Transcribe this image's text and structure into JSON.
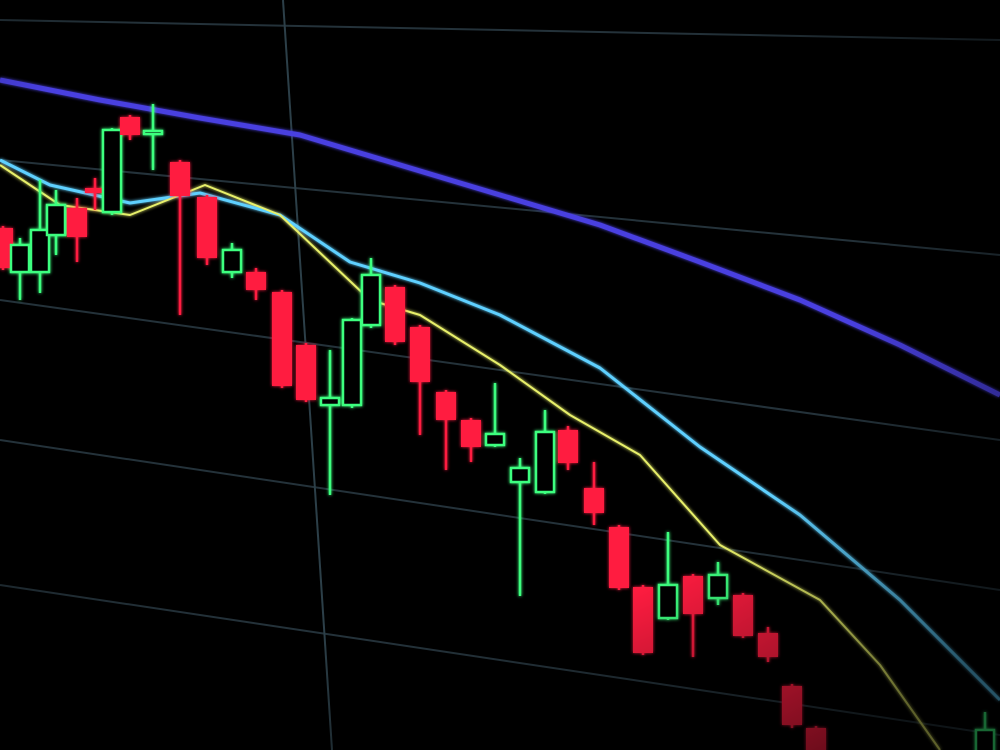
{
  "scene": {
    "subject": "candlestick-price-chart-on-screen",
    "colors": {
      "background": "#000000",
      "bearish_candle": "#ff1f3f",
      "bullish_candle": "#3dff7f",
      "long_moving_average": "#4a3fe0",
      "mid_moving_average": "#5fd0ff",
      "short_moving_average": "#e8f06a",
      "grid": "#24323a"
    }
  }
}
